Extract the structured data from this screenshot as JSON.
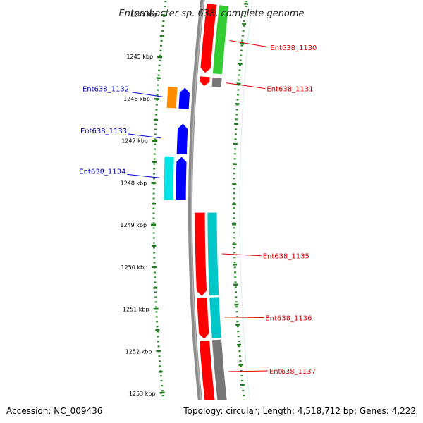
{
  "title": "Enterobacter sp. 638, complete genome",
  "footer": {
    "accession": "Accession: NC_009436",
    "topology": "Topology: circular; Length: 4,518,712 bp; Genes: 4,222"
  },
  "ruler": {
    "unit": "kbp",
    "ticks": [
      {
        "kbp": 1244,
        "label": "1244 kbp"
      },
      {
        "kbp": 1245,
        "label": "1245 kbp"
      },
      {
        "kbp": 1246,
        "label": "1246 kbp"
      },
      {
        "kbp": 1247,
        "label": "1247 kbp"
      },
      {
        "kbp": 1248,
        "label": "1248 kbp"
      },
      {
        "kbp": 1249,
        "label": "1249 kbp"
      },
      {
        "kbp": 1250,
        "label": "1250 kbp"
      },
      {
        "kbp": 1251,
        "label": "1251 kbp"
      },
      {
        "kbp": 1252,
        "label": "1252 kbp"
      },
      {
        "kbp": 1253,
        "label": "1253 kbp"
      }
    ]
  },
  "genes": [
    {
      "id": "g1130",
      "label": "Ent638_1130",
      "strand": "forward",
      "start": 1243.6,
      "end": 1245.3,
      "color": "#ff0000",
      "cog_color": "#33cc33"
    },
    {
      "id": "g1131",
      "label": "Ent638_1131",
      "strand": "forward",
      "start": 1245.38,
      "end": 1245.62,
      "color": "#ff0000",
      "cog_color": "#777777"
    },
    {
      "id": "g1132",
      "label": "Ent638_1132",
      "strand": "reverse",
      "start": 1245.68,
      "end": 1246.2,
      "color": "#0000ff",
      "cog_color": "#ff8c00"
    },
    {
      "id": "g1133",
      "label": "Ent638_1133",
      "strand": "reverse",
      "start": 1246.55,
      "end": 1247.3,
      "color": "#0000ff",
      "cog_color": null
    },
    {
      "id": "g1134",
      "label": "Ent638_1134",
      "strand": "reverse",
      "start": 1247.35,
      "end": 1248.4,
      "color": "#0000ff",
      "cog_color": "#00e5e5"
    },
    {
      "id": "g1135",
      "label": "Ent638_1135",
      "strand": "forward",
      "start": 1248.7,
      "end": 1250.75,
      "color": "#ff0000",
      "cog_color": "#00c8c8"
    },
    {
      "id": "g1136",
      "label": "Ent638_1136",
      "strand": "forward",
      "start": 1250.78,
      "end": 1251.8,
      "color": "#ff0000",
      "cog_color": "#00c8c8"
    },
    {
      "id": "g1137",
      "label": "Ent638_1137",
      "strand": "forward",
      "start": 1251.83,
      "end": 1253.45,
      "color": "#ff0000",
      "cog_color": "#777777"
    }
  ]
}
